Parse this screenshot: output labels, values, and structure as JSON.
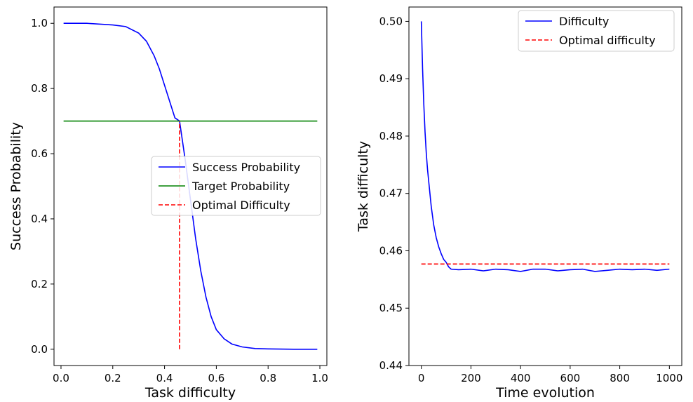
{
  "chart_data": [
    {
      "type": "line",
      "xlabel": "Task difficulty",
      "ylabel": "Success Probability",
      "xlim": [
        -0.027,
        1.027
      ],
      "ylim": [
        -0.05,
        1.05
      ],
      "xticks": [
        0.0,
        0.2,
        0.4,
        0.6,
        0.8,
        1.0
      ],
      "xtick_labels": [
        "0.0",
        "0.2",
        "0.4",
        "0.6",
        "0.8",
        "1.0"
      ],
      "yticks": [
        0.0,
        0.2,
        0.4,
        0.6,
        0.8,
        1.0
      ],
      "ytick_labels": [
        "0.0",
        "0.2",
        "0.4",
        "0.6",
        "0.8",
        "1.0"
      ],
      "grid": false,
      "legend_position": "center-right",
      "series": [
        {
          "name": "Success Probability",
          "color": "#0000ff",
          "style": "solid",
          "x": [
            0.01,
            0.1,
            0.2,
            0.25,
            0.3,
            0.33,
            0.36,
            0.38,
            0.4,
            0.42,
            0.44,
            0.458,
            0.48,
            0.5,
            0.52,
            0.54,
            0.56,
            0.58,
            0.6,
            0.63,
            0.66,
            0.7,
            0.75,
            0.8,
            0.9,
            0.99
          ],
          "y": [
            1.0,
            1.0,
            0.995,
            0.99,
            0.97,
            0.945,
            0.9,
            0.86,
            0.81,
            0.76,
            0.71,
            0.7,
            0.58,
            0.46,
            0.34,
            0.24,
            0.16,
            0.1,
            0.06,
            0.032,
            0.016,
            0.007,
            0.002,
            0.001,
            0.0,
            0.0
          ]
        },
        {
          "name": "Target Probability",
          "color": "#008000",
          "style": "solid",
          "x": [
            0.01,
            0.99
          ],
          "y": [
            0.7,
            0.7
          ]
        },
        {
          "name": "Optimal Difficulty",
          "color": "#ff0000",
          "style": "dashed",
          "x": [
            0.458,
            0.458
          ],
          "y": [
            0.0,
            0.7
          ]
        }
      ]
    },
    {
      "type": "line",
      "xlabel": "Time evolution",
      "ylabel": "Task difficulty",
      "xlim": [
        -50,
        1050
      ],
      "ylim": [
        0.44,
        0.5025
      ],
      "xticks": [
        0,
        200,
        400,
        600,
        800,
        1000
      ],
      "xtick_labels": [
        "0",
        "200",
        "400",
        "600",
        "800",
        "1000"
      ],
      "yticks": [
        0.44,
        0.45,
        0.46,
        0.47,
        0.48,
        0.49,
        0.5
      ],
      "ytick_labels": [
        "0.44",
        "0.45",
        "0.46",
        "0.47",
        "0.48",
        "0.49",
        "0.50"
      ],
      "grid": false,
      "legend_position": "top-right",
      "series": [
        {
          "name": "Difficulty",
          "color": "#0000ff",
          "style": "solid",
          "x": [
            0,
            5,
            10,
            15,
            20,
            25,
            30,
            40,
            50,
            60,
            70,
            80,
            90,
            100,
            110,
            120,
            150,
            200,
            250,
            300,
            350,
            400,
            450,
            500,
            550,
            600,
            650,
            700,
            750,
            800,
            850,
            900,
            950,
            1000
          ],
          "y": [
            0.5,
            0.4918,
            0.4855,
            0.4807,
            0.477,
            0.4742,
            0.472,
            0.4677,
            0.4645,
            0.4623,
            0.4607,
            0.4595,
            0.4585,
            0.458,
            0.4572,
            0.4568,
            0.4567,
            0.4568,
            0.4565,
            0.4568,
            0.4567,
            0.4564,
            0.4568,
            0.4568,
            0.4565,
            0.4567,
            0.4568,
            0.4564,
            0.4566,
            0.4568,
            0.4567,
            0.4568,
            0.4566,
            0.4568
          ]
        },
        {
          "name": "Optimal difficulty",
          "color": "#ff0000",
          "style": "dashed",
          "x": [
            0,
            1000
          ],
          "y": [
            0.4577,
            0.4577
          ]
        }
      ]
    }
  ]
}
